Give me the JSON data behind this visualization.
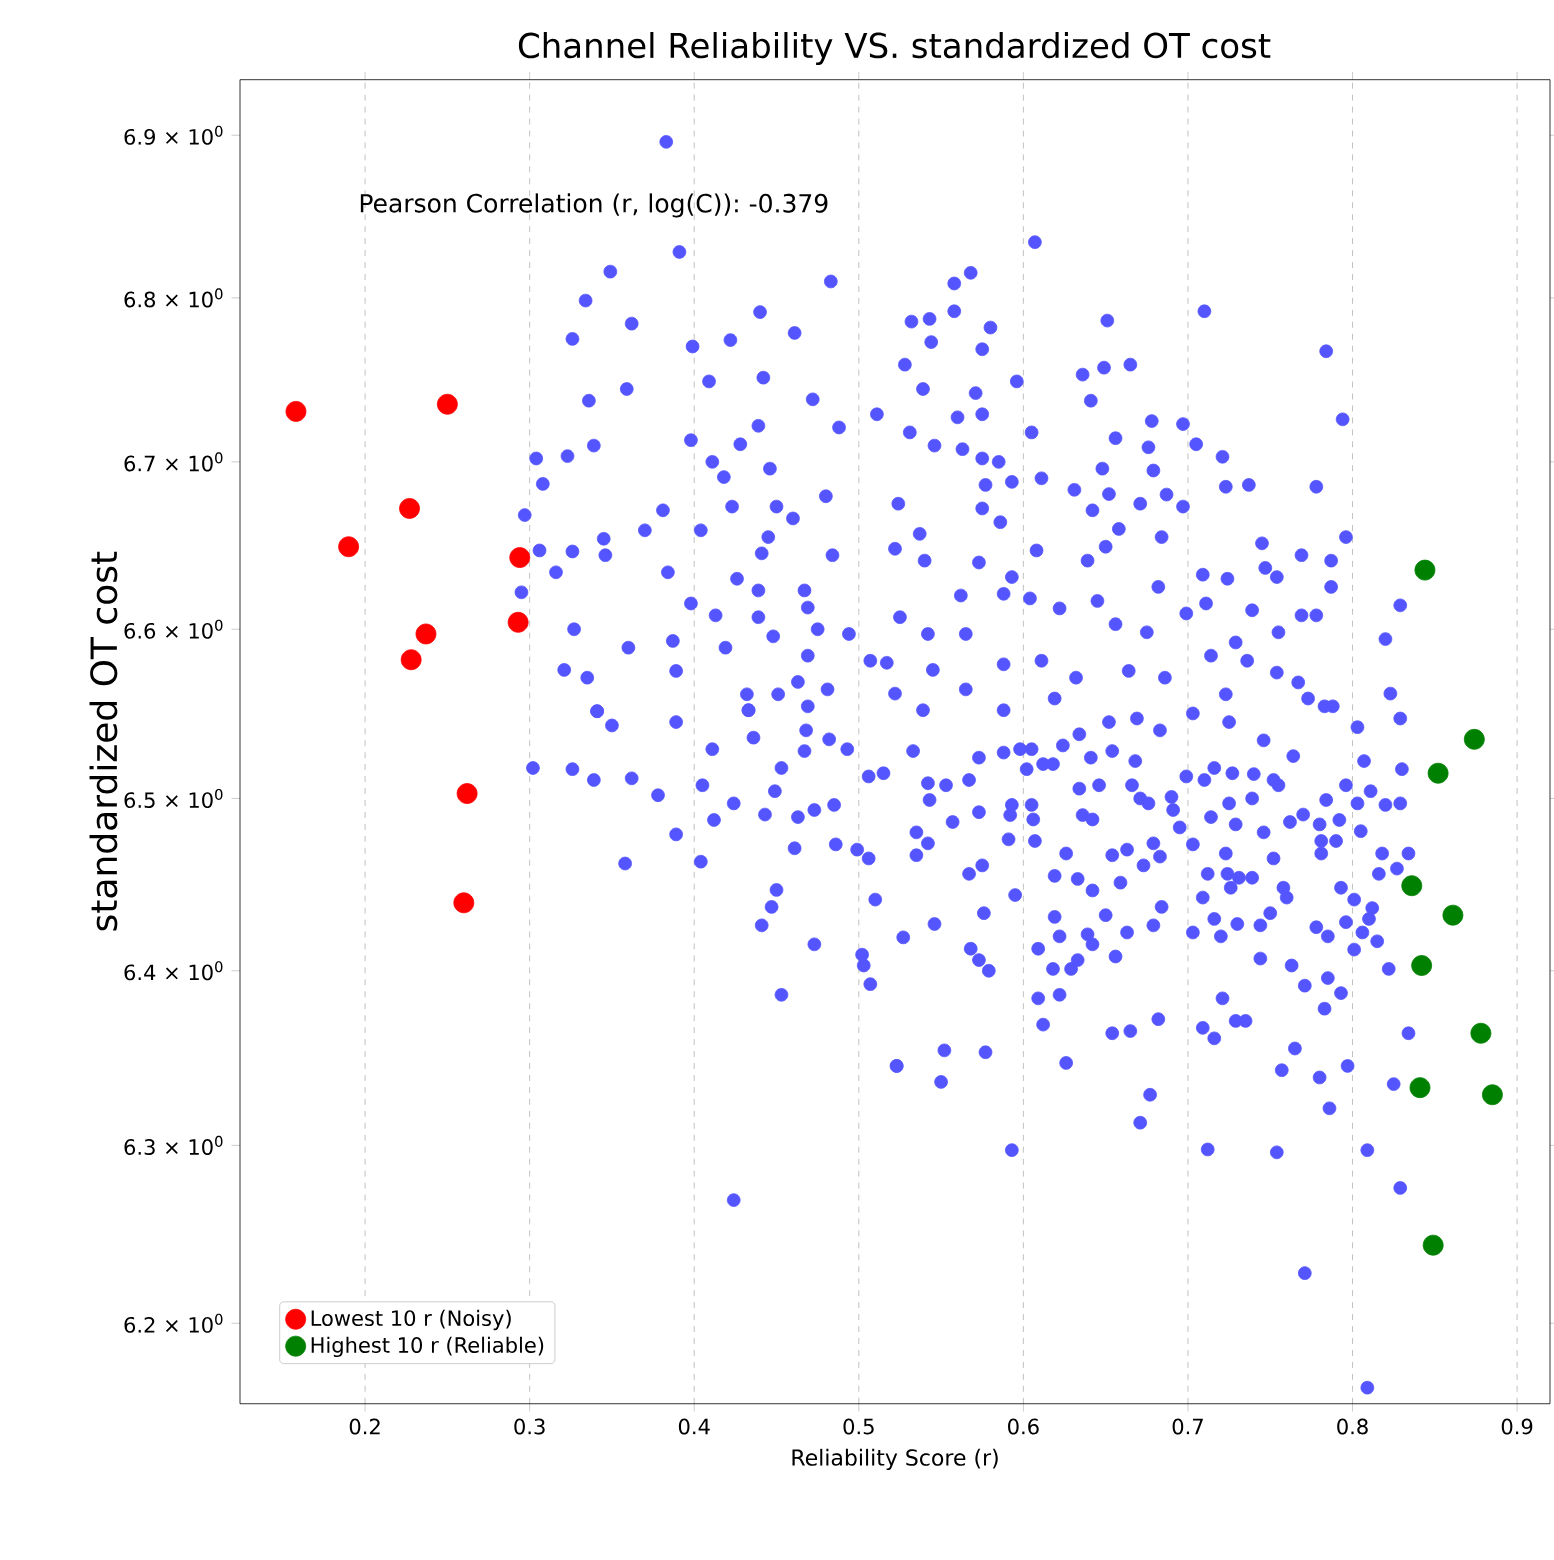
{
  "chart_data": {
    "type": "scatter",
    "title": "Channel Reliability VS. standardized OT cost",
    "xlabel": "Reliability Score (r)",
    "ylabel": "standardized OT cost",
    "annotations": [
      "Pearson Correlation (r, log(C)): -0.379"
    ],
    "xlim": [
      0.124,
      0.92
    ],
    "ylim": [
      6.155,
      6.935
    ],
    "log": "y",
    "grid": "x",
    "legend": "bottom left",
    "marker": "circle",
    "xticks": [
      0.2,
      0.3,
      0.4,
      0.5,
      0.6,
      0.7,
      0.8,
      0.9
    ],
    "yticks": [
      {
        "value": 6.2,
        "label": "6.2 × 10$^{0}$"
      },
      {
        "value": 6.3,
        "label": "6.3 × 10$^{0}$"
      },
      {
        "value": 6.4,
        "label": "6.4 × 10$^{0}$"
      },
      {
        "value": 6.5,
        "label": "6.5 × 10$^{0}$"
      },
      {
        "value": 6.6,
        "label": "6.6 × 10$^{0}$"
      },
      {
        "value": 6.7,
        "label": "6.7 × 10$^{0}$"
      },
      {
        "value": 6.8,
        "label": "6.8 × 10$^{0}$"
      },
      {
        "value": 6.9,
        "label": "6.9 × 10$^{0}$"
      }
    ],
    "series": [
      {
        "color": "#5555ff",
        "x": [
          0.383,
          0.391,
          0.349,
          0.483,
          0.334,
          0.362,
          0.326,
          0.399,
          0.422,
          0.44,
          0.461,
          0.409,
          0.442,
          0.359,
          0.336,
          0.472,
          0.339,
          0.323,
          0.304,
          0.308,
          0.398,
          0.428,
          0.411,
          0.439,
          0.488,
          0.511,
          0.418,
          0.446,
          0.381,
          0.423,
          0.45,
          0.48,
          0.297,
          0.37,
          0.404,
          0.345,
          0.46,
          0.445,
          0.306,
          0.326,
          0.346,
          0.441,
          0.484,
          0.316,
          0.384,
          0.426,
          0.295,
          0.439,
          0.467,
          0.398,
          0.413,
          0.439,
          0.469,
          0.327,
          0.448,
          0.475,
          0.494,
          0.36,
          0.419,
          0.469,
          0.387,
          0.321,
          0.335,
          0.389,
          0.432,
          0.451,
          0.463,
          0.481,
          0.341,
          0.433,
          0.469,
          0.507,
          0.607,
          0.568,
          0.558,
          0.71,
          0.558,
          0.532,
          0.543,
          0.58,
          0.651,
          0.784,
          0.544,
          0.575,
          0.528,
          0.636,
          0.649,
          0.665,
          0.596,
          0.539,
          0.571,
          0.641,
          0.794,
          0.56,
          0.697,
          0.575,
          0.605,
          0.531,
          0.656,
          0.678,
          0.705,
          0.563,
          0.546,
          0.676,
          0.721,
          0.575,
          0.585,
          0.648,
          0.611,
          0.723,
          0.737,
          0.778,
          0.679,
          0.631,
          0.593,
          0.577,
          0.652,
          0.687,
          0.524,
          0.697,
          0.671,
          0.642,
          0.575,
          0.796,
          0.586,
          0.658,
          0.522,
          0.537,
          0.65,
          0.684,
          0.745,
          0.608,
          0.769,
          0.787,
          0.709,
          0.724,
          0.747,
          0.754,
          0.54,
          0.573,
          0.593,
          0.639,
          0.562,
          0.787,
          0.829,
          0.82,
          0.823,
          0.769,
          0.778,
          0.525,
          0.588,
          0.604,
          0.645,
          0.622,
          0.682,
          0.699,
          0.711,
          0.739,
          0.755,
          0.729,
          0.675,
          0.656,
          0.565,
          0.542,
          0.517,
          0.545,
          0.588,
          0.611,
          0.632,
          0.664,
          0.686,
          0.714,
          0.736,
          0.754,
          0.767,
          0.522,
          0.565,
          0.619,
          0.723,
          0.773,
          0.788,
          0.341,
          0.35,
          0.389,
          0.433,
          0.468,
          0.411,
          0.436,
          0.482,
          0.493,
          0.302,
          0.326,
          0.339,
          0.362,
          0.378,
          0.405,
          0.424,
          0.449,
          0.453,
          0.467,
          0.506,
          0.412,
          0.443,
          0.463,
          0.473,
          0.485,
          0.389,
          0.358,
          0.404,
          0.461,
          0.486,
          0.499,
          0.506,
          0.51,
          0.45,
          0.447,
          0.441,
          0.473,
          0.502,
          0.503,
          0.507,
          0.453,
          0.523,
          0.424,
          0.539,
          0.588,
          0.533,
          0.515,
          0.542,
          0.573,
          0.588,
          0.553,
          0.567,
          0.543,
          0.557,
          0.573,
          0.535,
          0.542,
          0.535,
          0.567,
          0.575,
          0.592,
          0.591,
          0.605,
          0.602,
          0.612,
          0.634,
          0.652,
          0.669,
          0.683,
          0.703,
          0.725,
          0.746,
          0.764,
          0.783,
          0.803,
          0.829,
          0.807,
          0.83,
          0.796,
          0.811,
          0.82,
          0.829,
          0.784,
          0.803,
          0.77,
          0.792,
          0.78,
          0.805,
          0.781,
          0.79,
          0.781,
          0.818,
          0.834,
          0.816,
          0.827,
          0.793,
          0.801,
          0.812,
          0.81,
          0.796,
          0.806,
          0.785,
          0.778,
          0.815,
          0.801,
          0.822,
          0.763,
          0.785,
          0.793,
          0.771,
          0.783,
          0.744,
          0.721,
          0.729,
          0.735,
          0.709,
          0.716,
          0.765,
          0.757,
          0.78,
          0.797,
          0.834,
          0.825,
          0.786,
          0.809,
          0.829,
          0.771,
          0.809,
          0.754,
          0.712,
          0.677,
          0.671,
          0.682,
          0.665,
          0.654,
          0.626,
          0.622,
          0.609,
          0.612,
          0.618,
          0.629,
          0.633,
          0.642,
          0.656,
          0.65,
          0.663,
          0.679,
          0.684,
          0.703,
          0.709,
          0.72,
          0.716,
          0.73,
          0.744,
          0.75,
          0.76,
          0.758,
          0.609,
          0.622,
          0.639,
          0.619,
          0.607,
          0.626,
          0.619,
          0.633,
          0.642,
          0.636,
          0.642,
          0.654,
          0.659,
          0.663,
          0.673,
          0.683,
          0.679,
          0.695,
          0.703,
          0.712,
          0.724,
          0.731,
          0.739,
          0.723,
          0.726,
          0.746,
          0.752,
          0.729,
          0.714,
          0.725,
          0.739,
          0.755,
          0.762,
          0.671,
          0.676,
          0.69,
          0.699,
          0.71,
          0.716,
          0.727,
          0.74,
          0.752,
          0.691,
          0.668,
          0.654,
          0.641,
          0.634,
          0.646,
          0.666,
          0.618,
          0.624,
          0.605,
          0.598,
          0.606,
          0.593,
          0.579,
          0.573,
          0.568,
          0.576,
          0.595,
          0.546,
          0.527,
          0.577,
          0.552,
          0.523,
          0.55,
          0.593
        ],
        "values": [
          6.896,
          6.828,
          6.816,
          6.81,
          6.798,
          6.784,
          6.775,
          6.77,
          6.774,
          6.791,
          6.778,
          6.749,
          6.751,
          6.744,
          6.737,
          6.738,
          6.71,
          6.704,
          6.702,
          6.687,
          6.713,
          6.711,
          6.7,
          6.722,
          6.721,
          6.729,
          6.691,
          6.696,
          6.671,
          6.673,
          6.673,
          6.679,
          6.668,
          6.659,
          6.659,
          6.654,
          6.666,
          6.655,
          6.647,
          6.646,
          6.644,
          6.645,
          6.644,
          6.634,
          6.634,
          6.63,
          6.622,
          6.623,
          6.623,
          6.615,
          6.608,
          6.607,
          6.613,
          6.6,
          6.596,
          6.6,
          6.597,
          6.589,
          6.589,
          6.584,
          6.593,
          6.576,
          6.571,
          6.575,
          6.561,
          6.561,
          6.569,
          6.564,
          6.551,
          6.552,
          6.554,
          6.581,
          6.834,
          6.815,
          6.809,
          6.792,
          6.792,
          6.785,
          6.787,
          6.782,
          6.786,
          6.767,
          6.773,
          6.768,
          6.759,
          6.753,
          6.757,
          6.759,
          6.749,
          6.744,
          6.742,
          6.737,
          6.726,
          6.727,
          6.723,
          6.729,
          6.718,
          6.718,
          6.714,
          6.725,
          6.711,
          6.708,
          6.71,
          6.709,
          6.703,
          6.702,
          6.7,
          6.696,
          6.69,
          6.685,
          6.686,
          6.685,
          6.695,
          6.683,
          6.688,
          6.686,
          6.681,
          6.68,
          6.675,
          6.673,
          6.675,
          6.671,
          6.672,
          6.655,
          6.664,
          6.66,
          6.648,
          6.657,
          6.649,
          6.655,
          6.651,
          6.647,
          6.644,
          6.641,
          6.632,
          6.63,
          6.636,
          6.631,
          6.641,
          6.64,
          6.631,
          6.641,
          6.62,
          6.625,
          6.614,
          6.594,
          6.562,
          6.608,
          6.608,
          6.607,
          6.621,
          6.618,
          6.617,
          6.612,
          6.625,
          6.609,
          6.615,
          6.611,
          6.598,
          6.592,
          6.598,
          6.603,
          6.597,
          6.597,
          6.58,
          6.576,
          6.579,
          6.581,
          6.571,
          6.575,
          6.571,
          6.584,
          6.581,
          6.574,
          6.568,
          6.562,
          6.564,
          6.559,
          6.561,
          6.559,
          6.554,
          6.551,
          6.543,
          6.545,
          6.552,
          6.54,
          6.529,
          6.536,
          6.535,
          6.529,
          6.518,
          6.517,
          6.511,
          6.512,
          6.502,
          6.508,
          6.497,
          6.504,
          6.518,
          6.528,
          6.513,
          6.487,
          6.491,
          6.489,
          6.493,
          6.496,
          6.479,
          6.462,
          6.463,
          6.471,
          6.473,
          6.47,
          6.465,
          6.441,
          6.447,
          6.437,
          6.426,
          6.415,
          6.409,
          6.403,
          6.392,
          6.386,
          6.345,
          6.269,
          6.552,
          6.552,
          6.528,
          6.515,
          6.509,
          6.524,
          6.527,
          6.508,
          6.511,
          6.499,
          6.486,
          6.492,
          6.48,
          6.474,
          6.467,
          6.456,
          6.461,
          6.49,
          6.476,
          6.496,
          6.517,
          6.52,
          6.538,
          6.545,
          6.547,
          6.54,
          6.55,
          6.545,
          6.534,
          6.525,
          6.554,
          6.542,
          6.547,
          6.522,
          6.517,
          6.508,
          6.504,
          6.496,
          6.497,
          6.499,
          6.497,
          6.491,
          6.487,
          6.485,
          6.481,
          6.475,
          6.475,
          6.468,
          6.468,
          6.468,
          6.456,
          6.459,
          6.448,
          6.441,
          6.436,
          6.43,
          6.428,
          6.422,
          6.42,
          6.425,
          6.417,
          6.412,
          6.401,
          6.403,
          6.396,
          6.387,
          6.391,
          6.378,
          6.407,
          6.384,
          6.371,
          6.371,
          6.367,
          6.361,
          6.355,
          6.343,
          6.339,
          6.345,
          6.364,
          6.335,
          6.321,
          6.297,
          6.276,
          6.228,
          6.164,
          6.296,
          6.298,
          6.329,
          6.313,
          6.372,
          6.365,
          6.364,
          6.347,
          6.386,
          6.384,
          6.369,
          6.401,
          6.401,
          6.406,
          6.415,
          6.408,
          6.432,
          6.422,
          6.426,
          6.437,
          6.422,
          6.442,
          6.42,
          6.43,
          6.427,
          6.426,
          6.433,
          6.442,
          6.448,
          6.413,
          6.42,
          6.421,
          6.431,
          6.475,
          6.468,
          6.455,
          6.453,
          6.446,
          6.49,
          6.488,
          6.467,
          6.451,
          6.47,
          6.461,
          6.466,
          6.474,
          6.483,
          6.473,
          6.456,
          6.456,
          6.454,
          6.454,
          6.468,
          6.448,
          6.48,
          6.465,
          6.485,
          6.489,
          6.497,
          6.5,
          6.508,
          6.486,
          6.5,
          6.497,
          6.501,
          6.513,
          6.511,
          6.518,
          6.515,
          6.514,
          6.511,
          6.493,
          6.522,
          6.528,
          6.524,
          6.506,
          6.508,
          6.508,
          6.52,
          6.531,
          6.529,
          6.529,
          6.488,
          6.496,
          6.4,
          6.406,
          6.413,
          6.433,
          6.444,
          6.427,
          6.419,
          6.353,
          6.354,
          6.345,
          6.336,
          6.297
        ]
      },
      {
        "name": "Lowest 10 r (Noisy)",
        "color": "#ff0000",
        "x": [
          0.158,
          0.25,
          0.227,
          0.19,
          0.294,
          0.293,
          0.237,
          0.228,
          0.262,
          0.26
        ],
        "values": [
          6.731,
          6.735,
          6.672,
          6.649,
          6.643,
          6.604,
          6.597,
          6.582,
          6.503,
          6.439
        ]
      },
      {
        "name": "Highest 10 r (Reliable)",
        "color": "#008000",
        "x": [
          0.844,
          0.874,
          0.852,
          0.836,
          0.861,
          0.842,
          0.878,
          0.841,
          0.885,
          0.849
        ],
        "values": [
          6.635,
          6.535,
          6.515,
          6.449,
          6.432,
          6.403,
          6.364,
          6.333,
          6.329,
          6.244
        ]
      }
    ]
  }
}
